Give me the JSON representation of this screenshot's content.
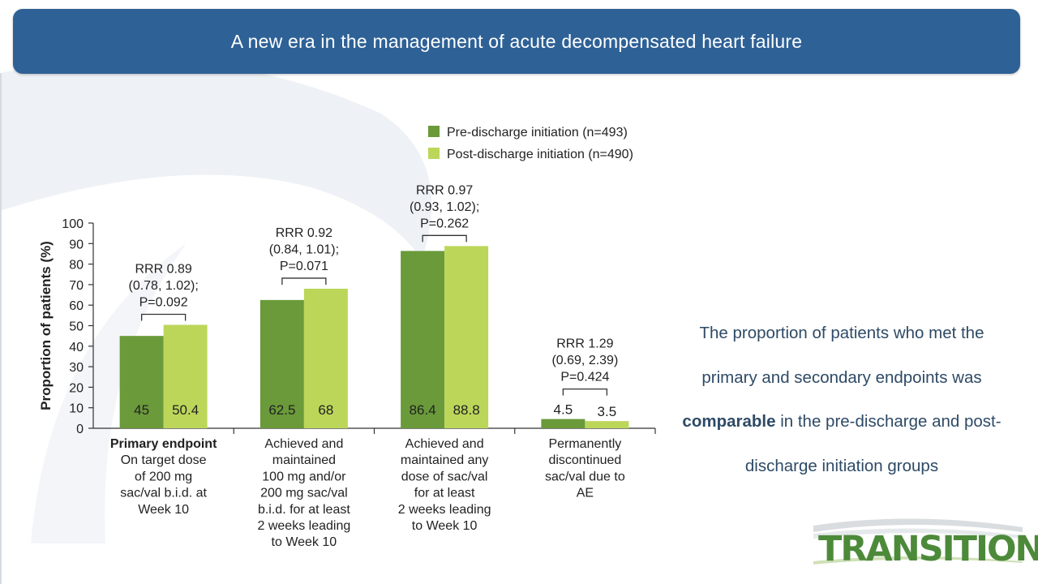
{
  "header": {
    "title": "A new era in the management of acute decompensated heart failure"
  },
  "side_text": {
    "part1": "The proportion of patients who met the primary and secondary endpoints was ",
    "bold": "comparable",
    "part2": " in the pre-discharge and post-discharge initiation groups"
  },
  "logo": {
    "text": "TRANSITION"
  },
  "chart_data": {
    "type": "bar",
    "title": "",
    "xlabel": "",
    "ylabel": "Proportion of patients (%)",
    "ylim": [
      0,
      100
    ],
    "yticks": [
      0,
      10,
      20,
      30,
      40,
      50,
      60,
      70,
      80,
      90,
      100
    ],
    "legend_placement": "top",
    "categories": [
      {
        "bold_line": "Primary endpoint",
        "lines": [
          "On target dose",
          "of 200 mg",
          "sac/val b.i.d. at",
          "Week 10"
        ]
      },
      {
        "bold_line": "",
        "lines": [
          "Achieved and",
          "maintained",
          "100 mg and/or",
          "200 mg sac/val",
          "b.i.d. for at least",
          "2 weeks leading",
          "to Week 10"
        ]
      },
      {
        "bold_line": "",
        "lines": [
          "Achieved and",
          "maintained any",
          "dose of sac/val",
          "for at least",
          "2 weeks leading",
          "to Week 10"
        ]
      },
      {
        "bold_line": "",
        "lines": [
          "Permanently",
          "discontinued",
          "sac/val due to",
          "AE"
        ]
      }
    ],
    "series": [
      {
        "name": "Pre-discharge initiation (n=493)",
        "color": "#6a9a3a",
        "values": [
          45,
          62.5,
          86.4,
          4.5
        ],
        "labels": [
          "45",
          "62.5",
          "86.4",
          "4.5"
        ]
      },
      {
        "name": "Post-discharge initiation (n=490)",
        "color": "#bcd65a",
        "values": [
          50.4,
          68,
          88.8,
          3.5
        ],
        "labels": [
          "50.4",
          "68",
          "88.8",
          "3.5"
        ]
      }
    ],
    "annotations": [
      {
        "lines": [
          "RRR 0.89",
          "(0.78, 1.02);",
          "P=0.092"
        ]
      },
      {
        "lines": [
          "RRR 0.92",
          "(0.84, 1.01);",
          "P=0.071"
        ]
      },
      {
        "lines": [
          "RRR 0.97",
          "(0.93, 1.02);",
          "P=0.262"
        ]
      },
      {
        "lines": [
          "RRR 1.29",
          "(0.69, 2.39)",
          "P=0.424"
        ]
      }
    ],
    "colors": {
      "pre": "#6a9a3a",
      "post": "#bcd65a",
      "text": "#222222",
      "axis": "#333333"
    }
  }
}
